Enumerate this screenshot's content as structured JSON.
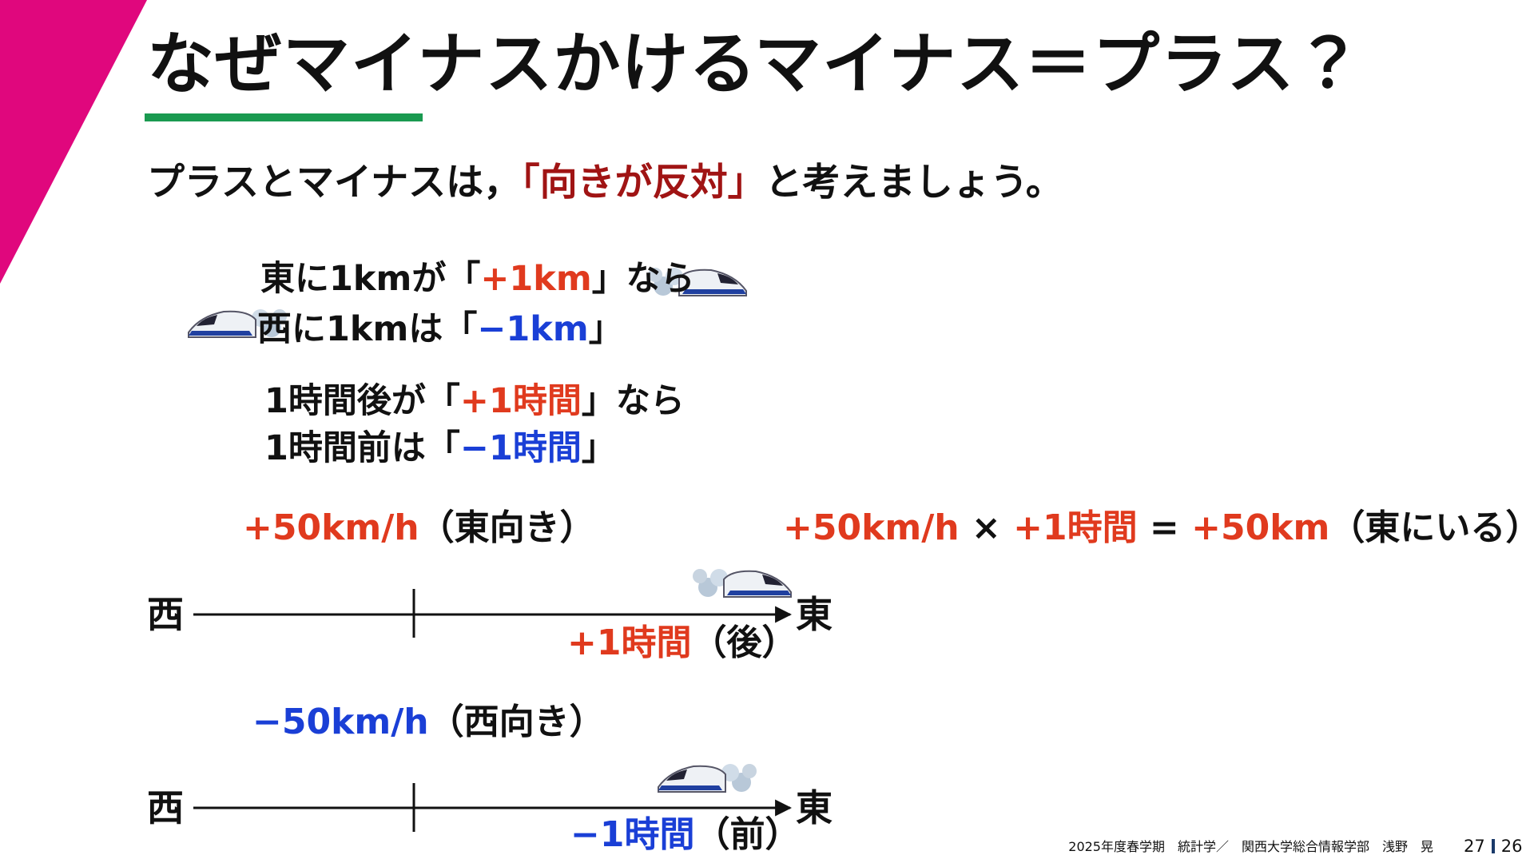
{
  "title": "なぜマイナスかけるマイナス＝プラス？",
  "subtitle": [
    "プラスとマイナスは，",
    "「向きが反対」",
    "と考えましょう。"
  ],
  "examples": [
    [
      "東に1kmが「",
      "+1km",
      "」なら"
    ],
    [
      "西に1kmは「",
      "−1km",
      "」"
    ],
    [
      "1時間後が「",
      "+1時間",
      "」なら"
    ],
    [
      "1時間前は「",
      "−1時間",
      "」"
    ]
  ],
  "east_speed": [
    "+50km/h",
    "（東向き）"
  ],
  "equation": [
    "+50km/h",
    " × ",
    "+1時間",
    " = ",
    "+50km",
    "（東にいる）"
  ],
  "axis_top": {
    "west": "西",
    "east": "東",
    "label": [
      "+1時間",
      "（後）"
    ]
  },
  "west_speed": [
    "−50km/h",
    "（西向き）"
  ],
  "axis_bottom": {
    "west": "西",
    "east": "東",
    "label": [
      "−1時間",
      "（前）"
    ]
  },
  "footer": "2025年度春学期　統計学／　関西大学総合情報学部　浅野　晃",
  "page": [
    "27",
    "26"
  ]
}
